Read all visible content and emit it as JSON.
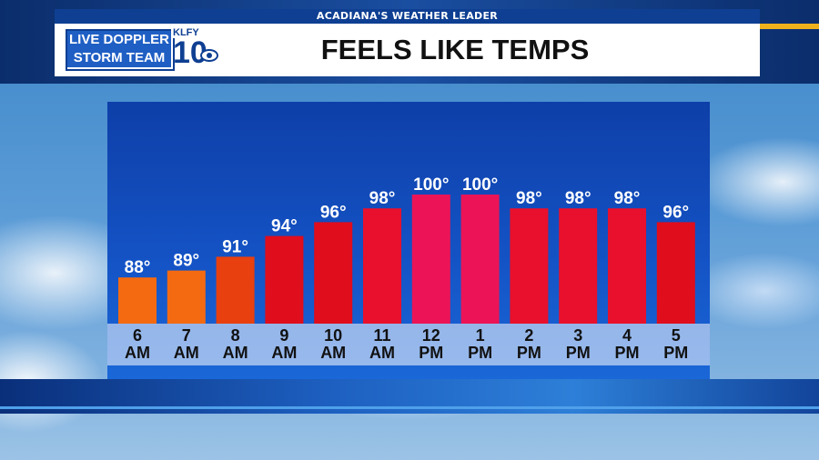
{
  "header": {
    "tagline": "ACADIANA'S WEATHER LEADER",
    "logo_line1": "LIVE DOPPLER",
    "logo_line2": "STORM TEAM",
    "station_call": "KLFY",
    "station_number": "10"
  },
  "colors": {
    "orange": "#f46a10",
    "orange_red": "#e8400e",
    "red": "#e00d1c",
    "crimson": "#ec1f3c",
    "peak_pink": "#ec1456"
  },
  "chart_data": {
    "type": "bar",
    "title": "FEELS LIKE TEMPS",
    "categories": [
      [
        "6",
        "AM"
      ],
      [
        "7",
        "AM"
      ],
      [
        "8",
        "AM"
      ],
      [
        "9",
        "AM"
      ],
      [
        "10",
        "AM"
      ],
      [
        "11",
        "AM"
      ],
      [
        "12",
        "PM"
      ],
      [
        "1",
        "PM"
      ],
      [
        "2",
        "PM"
      ],
      [
        "3",
        "PM"
      ],
      [
        "4",
        "PM"
      ],
      [
        "5",
        "PM"
      ]
    ],
    "values": [
      88,
      89,
      91,
      94,
      96,
      98,
      100,
      100,
      98,
      98,
      98,
      96
    ],
    "value_labels": [
      "88°",
      "89°",
      "91°",
      "94°",
      "96°",
      "98°",
      "100°",
      "100°",
      "98°",
      "98°",
      "98°",
      "96°"
    ],
    "bar_colors": [
      "#f46a10",
      "#f46a10",
      "#e8400e",
      "#e00d1c",
      "#e00d1c",
      "#e8102c",
      "#ec1456",
      "#ec1456",
      "#e8102c",
      "#e8102c",
      "#e8102c",
      "#e00d1c"
    ],
    "unit": "°F",
    "xlabel": "",
    "ylabel": "",
    "ylim": [
      85,
      100
    ],
    "grid": false,
    "legend": "none"
  }
}
